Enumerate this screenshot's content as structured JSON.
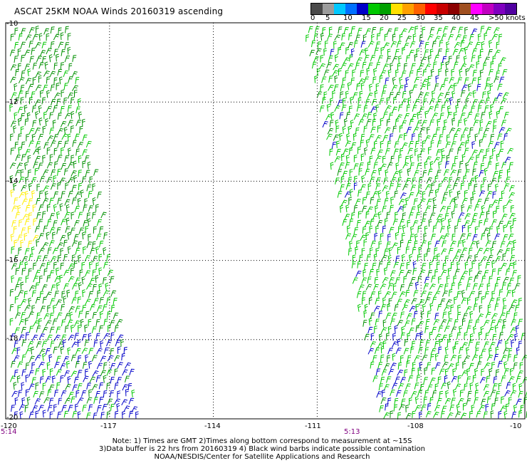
{
  "title": "ASCAT 25KM NOAA Winds 20160319 ascending",
  "legend": {
    "labels": [
      "0",
      "5",
      "10",
      "15",
      "20",
      "25",
      "30",
      "35",
      "40",
      "45",
      ">50 knots"
    ],
    "colors": [
      "#4a4a4a",
      "#9c9c9c",
      "#00c8ff",
      "#0070ff",
      "#0000c8",
      "#00c800",
      "#00a000",
      "#ffe000",
      "#ffa000",
      "#ff6000",
      "#ff0000",
      "#c80000",
      "#8b0000",
      "#a05020",
      "#ff00ff",
      "#c000c0",
      "#8000c0",
      "#5000a0"
    ]
  },
  "y_axis_labels": [
    "-10",
    "-12",
    "-14",
    "-16",
    "-18",
    "-20"
  ],
  "x_axis_labels": [
    "-120",
    "-117",
    "-114",
    "-111",
    "-108",
    "-10"
  ],
  "times": [
    "5:14",
    "5:13"
  ],
  "notes": [
    "Note: 1) Times are GMT 2)Times along bottom correspond to measurement at ~15S",
    "3)Data buffer is 22 hrs from 20160319 4) Black wind barbs indicate possible contamination",
    "NOAA/NESDIS/Center for Satellite Applications and Research"
  ],
  "map_data": {
    "lat_range": [
      -20,
      -10
    ],
    "lon_range": [
      -120,
      -105
    ],
    "grid_lats": [
      -12,
      -14,
      -16,
      -18
    ],
    "grid_lons": [
      -117,
      -114,
      -111,
      -108
    ],
    "swaths": [
      {
        "id": "west",
        "time": "5:14",
        "west_edge_lon": -120,
        "east_edge_lon_north": -118.4,
        "east_edge_lon_south": -116.5
      },
      {
        "id": "east",
        "time": "5:13",
        "west_edge_lon_north": -111.3,
        "west_edge_lon_south": -109.2,
        "east_edge_lon_north": -105.6,
        "east_edge_lon_south": -105
      }
    ],
    "barb_colors": {
      "green_dark": "#009000",
      "green": "#00c800",
      "blue": "#0000c8",
      "yellow": "#ffee00"
    }
  }
}
